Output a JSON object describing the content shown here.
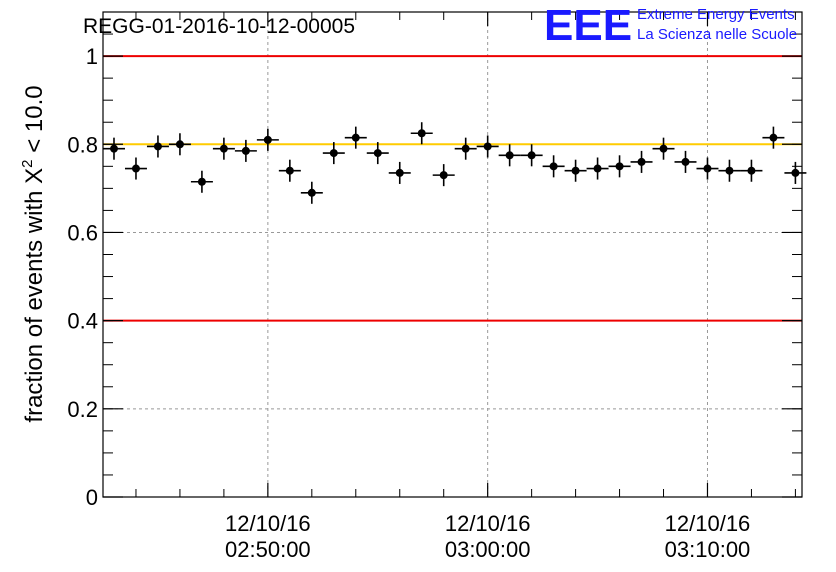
{
  "title": "REGG-01-2016-10-12-00005",
  "logo": {
    "mark": "EEE",
    "line1": "Extreme Energy Events",
    "line2": "La Scienza nelle Scuole"
  },
  "ylabel_prefix": "fraction of events with X",
  "ylabel_sup": "2",
  "ylabel_suffix": " < 10.0",
  "xticks": [
    {
      "t": 10,
      "date": "12/10/16",
      "time": "02:50:00"
    },
    {
      "t": 20,
      "date": "12/10/16",
      "time": "03:00:00"
    },
    {
      "t": 30,
      "date": "12/10/16",
      "time": "03:10:00"
    }
  ],
  "yticks": [
    "0",
    "0.2",
    "0.4",
    "0.6",
    "0.8",
    "1"
  ],
  "colors": {
    "limit": "#ee0000",
    "reference": "#ffcc00",
    "points": "#000000",
    "grid": "#999999",
    "logo": "#1a1aff"
  },
  "chart_data": {
    "type": "scatter",
    "title": "REGG-01-2016-10-12-00005",
    "xlabel": "",
    "ylabel": "fraction of events with X^2 < 10.0",
    "x_unit": "minutes after 02:40:00 on 12/10/16",
    "xlim": [
      2.5,
      34.3
    ],
    "ylim": [
      0,
      1.1
    ],
    "grid": true,
    "horizontal_lines": [
      {
        "y": 1.0,
        "color": "#ee0000"
      },
      {
        "y": 0.4,
        "color": "#ee0000"
      },
      {
        "y": 0.8,
        "color": "#ffcc00"
      }
    ],
    "x": [
      3,
      4,
      5,
      6,
      7,
      8,
      9,
      10,
      11,
      12,
      13,
      14,
      15,
      16,
      17,
      18,
      19,
      20,
      21,
      22,
      23,
      24,
      25,
      26,
      27,
      28,
      29,
      30,
      31,
      32,
      33,
      34
    ],
    "y": [
      0.79,
      0.745,
      0.795,
      0.8,
      0.715,
      0.79,
      0.785,
      0.81,
      0.74,
      0.69,
      0.78,
      0.815,
      0.78,
      0.735,
      0.825,
      0.73,
      0.79,
      0.795,
      0.775,
      0.775,
      0.75,
      0.74,
      0.745,
      0.75,
      0.76,
      0.79,
      0.76,
      0.745,
      0.74,
      0.74,
      0.815,
      0.735
    ],
    "y_err": 0.025,
    "x_err": 0.5
  }
}
